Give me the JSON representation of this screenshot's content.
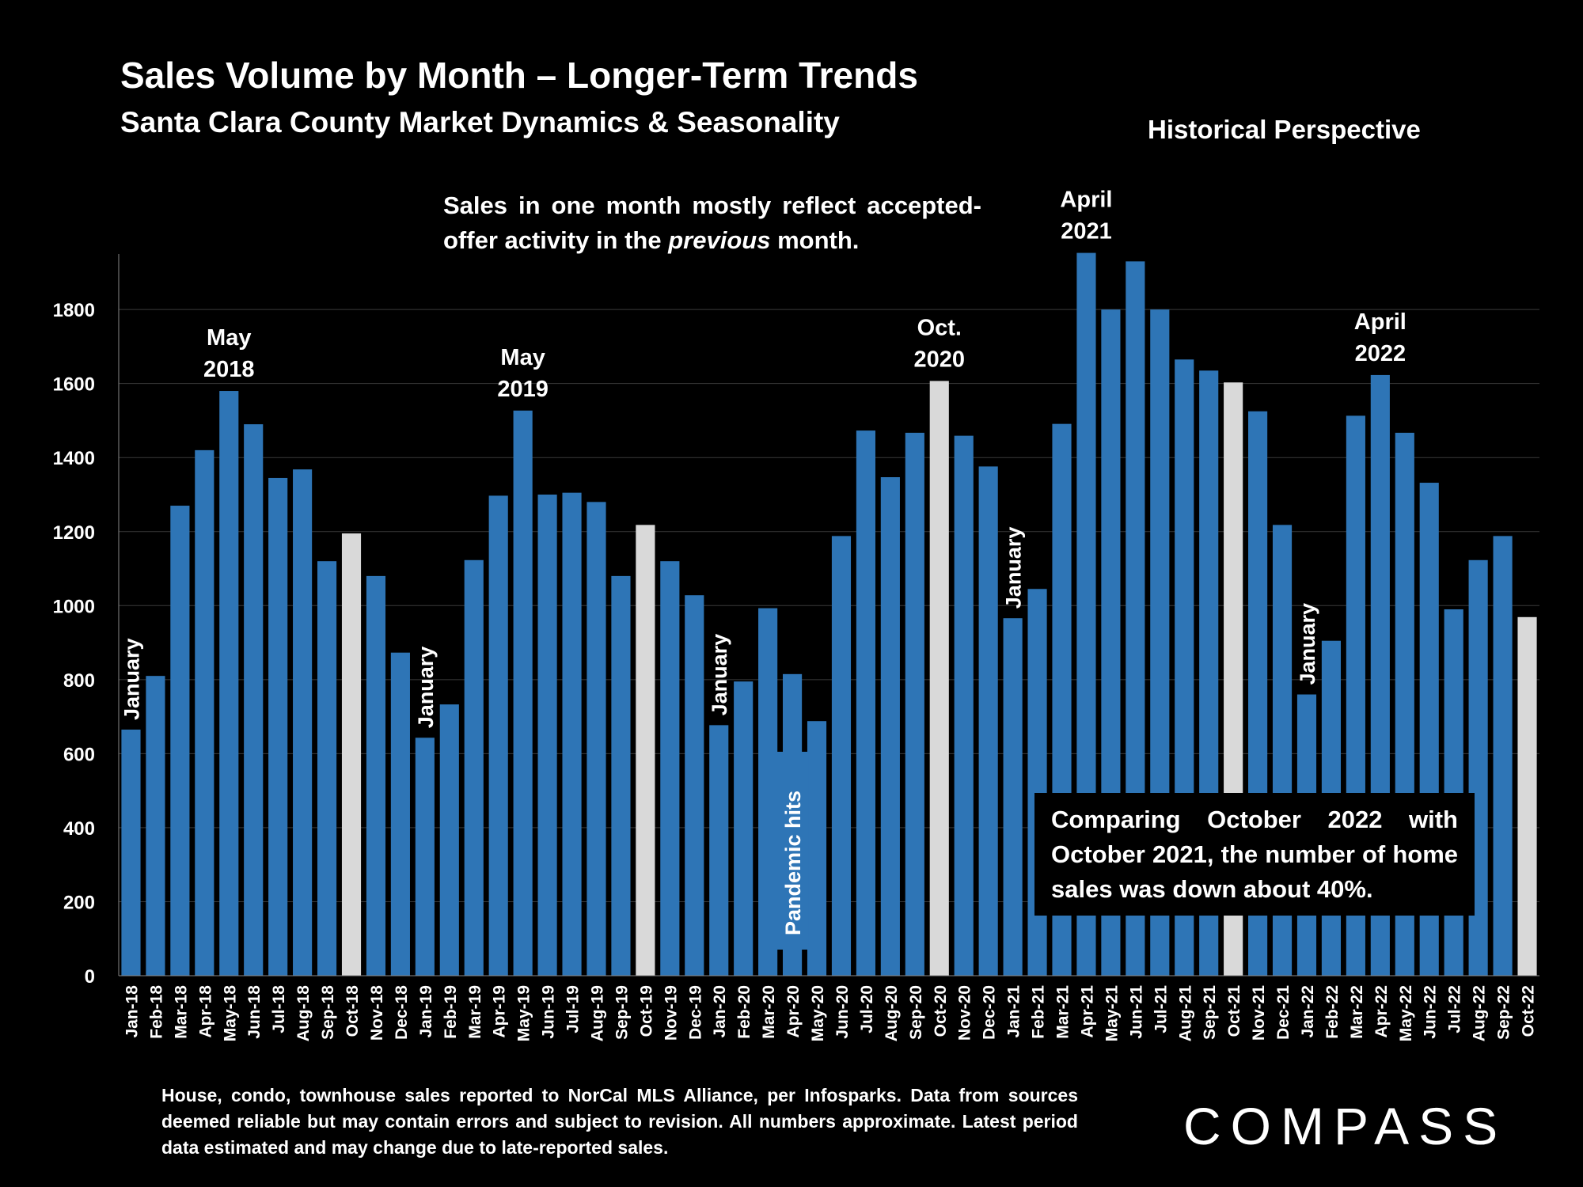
{
  "header": {
    "title": "Sales Volume by Month – Longer-Term Trends",
    "subtitle": "Santa Clara County Market Dynamics & Seasonality",
    "perspective": "Historical Perspective"
  },
  "note": {
    "before": "Sales in one month mostly reflect accepted-offer activity in the ",
    "emphasis": "previous",
    "after": " month."
  },
  "callout": "Comparing October 2022 with October 2021, the number of home sales was down about 40%.",
  "footnote": "House, condo, townhouse sales reported to NorCal MLS Alliance, per Infosparks. Data from sources deemed reliable but may contain errors and subject to revision. All numbers approximate. Latest period data estimated and may change due to late-reported sales.",
  "logo": "COMPASS",
  "colors": {
    "bar": "#2E75B6",
    "highlight": "#D9D9D9",
    "background": "#000000",
    "text": "#FFFFFF"
  },
  "chart_data": {
    "type": "bar",
    "categories": [
      "Jan-18",
      "Feb-18",
      "Mar-18",
      "Apr-18",
      "May-18",
      "Jun-18",
      "Jul-18",
      "Aug-18",
      "Sep-18",
      "Oct-18",
      "Nov-18",
      "Dec-18",
      "Jan-19",
      "Feb-19",
      "Mar-19",
      "Apr-19",
      "May-19",
      "Jun-19",
      "Jul-19",
      "Aug-19",
      "Sep-19",
      "Oct-19",
      "Nov-19",
      "Dec-19",
      "Jan-20",
      "Feb-20",
      "Mar-20",
      "Apr-20",
      "May-20",
      "Jun-20",
      "Jul-20",
      "Aug-20",
      "Sep-20",
      "Oct-20",
      "Nov-20",
      "Dec-20",
      "Jan-21",
      "Feb-21",
      "Mar-21",
      "Apr-21",
      "May-21",
      "Jun-21",
      "Jul-21",
      "Aug-21",
      "Sep-21",
      "Oct-21",
      "Nov-21",
      "Dec-21",
      "Jan-22",
      "Feb-22",
      "Mar-22",
      "Apr-22",
      "May-22",
      "Jun-22",
      "Jul-22",
      "Aug-22",
      "Sep-22",
      "Oct-22"
    ],
    "values": [
      665,
      810,
      1270,
      1420,
      1580,
      1490,
      1345,
      1368,
      1120,
      1195,
      1080,
      873,
      643,
      733,
      1123,
      1297,
      1527,
      1300,
      1305,
      1280,
      1080,
      1218,
      1120,
      1028,
      677,
      795,
      993,
      815,
      688,
      1188,
      1473,
      1347,
      1467,
      1607,
      1459,
      1376,
      966,
      1045,
      1491,
      1953,
      1800,
      1930,
      1800,
      1665,
      1635,
      1603,
      1525,
      1218,
      760,
      905,
      1513,
      1623,
      1467,
      1332,
      990,
      1123,
      1188,
      969
    ],
    "highlighted": [
      "Oct-18",
      "Oct-19",
      "Oct-20",
      "Oct-21",
      "Oct-22"
    ],
    "ylim": [
      0,
      1950
    ],
    "yticks": [
      0,
      200,
      400,
      600,
      800,
      1000,
      1200,
      1400,
      1600,
      1800
    ],
    "grid": true,
    "annotations": [
      {
        "category": "Jan-18",
        "text": "January",
        "vertical": true
      },
      {
        "category": "May-18",
        "text": "May\n2018",
        "vertical": false
      },
      {
        "category": "Jan-19",
        "text": "January",
        "vertical": true
      },
      {
        "category": "May-19",
        "text": "May\n2019",
        "vertical": false
      },
      {
        "category": "Jan-20",
        "text": "January",
        "vertical": true
      },
      {
        "category": "Apr-20",
        "text": "Pandemic hits",
        "vertical": true
      },
      {
        "category": "Oct-20",
        "text": "Oct.\n2020",
        "vertical": false
      },
      {
        "category": "Jan-21",
        "text": "January",
        "vertical": true
      },
      {
        "category": "Apr-21",
        "text": "April\n2021",
        "vertical": false
      },
      {
        "category": "Jan-22",
        "text": "January",
        "vertical": true
      },
      {
        "category": "Apr-22",
        "text": "April\n2022",
        "vertical": false
      }
    ]
  }
}
